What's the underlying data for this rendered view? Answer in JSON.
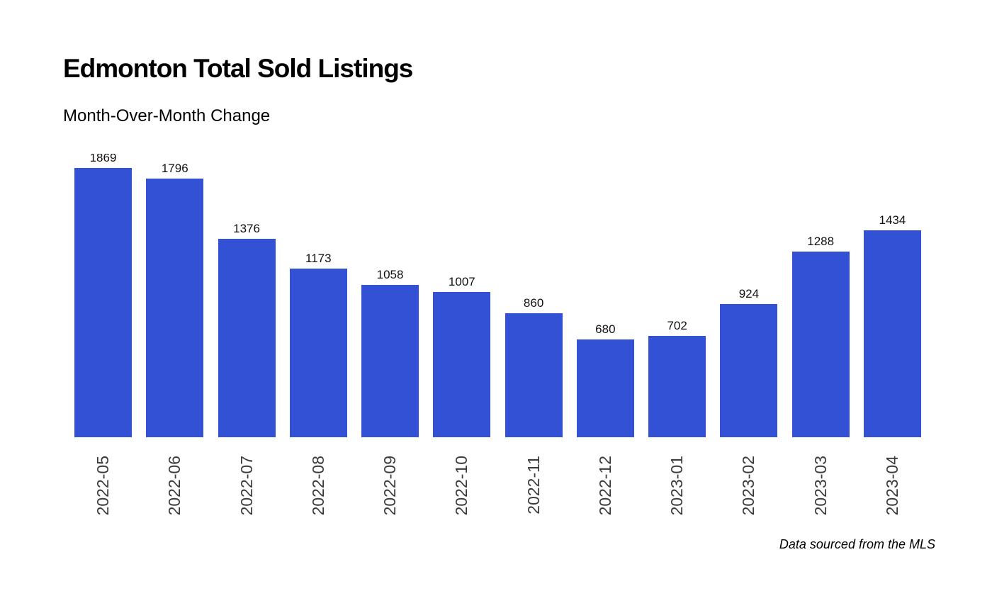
{
  "page": {
    "title": "Edmonton Total Sold Listings",
    "subtitle": "Month-Over-Month Change",
    "source_note": "Data sourced from the MLS"
  },
  "colors": {
    "bar": "#3351d4",
    "tick_label": "#3b3b3b",
    "value_label": "#111111",
    "background": "#ffffff"
  },
  "chart_data": {
    "type": "bar",
    "title": "Edmonton Total Sold Listings",
    "subtitle": "Month-Over-Month Change",
    "categories": [
      "2022-05",
      "2022-06",
      "2022-07",
      "2022-08",
      "2022-09",
      "2022-10",
      "2022-11",
      "2022-12",
      "2023-01",
      "2023-02",
      "2023-03",
      "2023-04"
    ],
    "values": [
      1869,
      1796,
      1376,
      1173,
      1058,
      1007,
      860,
      680,
      702,
      924,
      1288,
      1434
    ],
    "value_labels_shown": true,
    "xlabel": "",
    "ylabel": "",
    "ylim": [
      0,
      1970
    ],
    "grid": false,
    "legend": null,
    "x_tick_rotation": 90,
    "annotation": "Data sourced from the MLS"
  }
}
